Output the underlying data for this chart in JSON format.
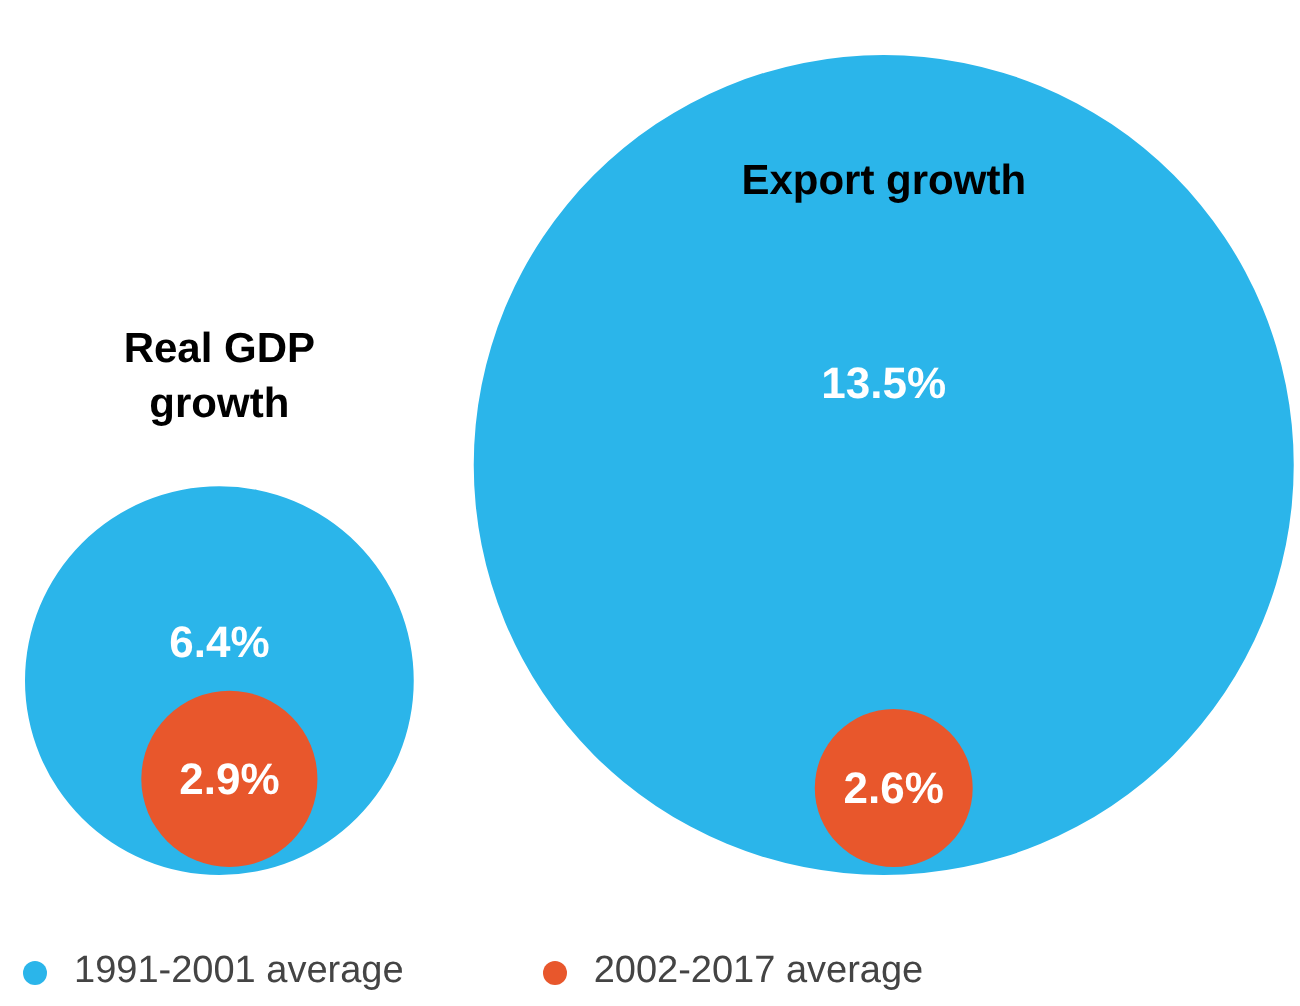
{
  "chart_data": {
    "type": "other",
    "categories": [
      "Real GDP growth",
      "Export growth"
    ],
    "series": [
      {
        "name": "1991-2001 average",
        "color": "#2bb5ea",
        "values": [
          6.4,
          13.5
        ],
        "value_labels": [
          "6.4%",
          "13.5%"
        ]
      },
      {
        "name": "2002-2017 average",
        "color": "#e8572c",
        "values": [
          2.9,
          2.6
        ],
        "value_labels": [
          "2.9%",
          "2.6%"
        ]
      }
    ],
    "legend": "bottom"
  }
}
